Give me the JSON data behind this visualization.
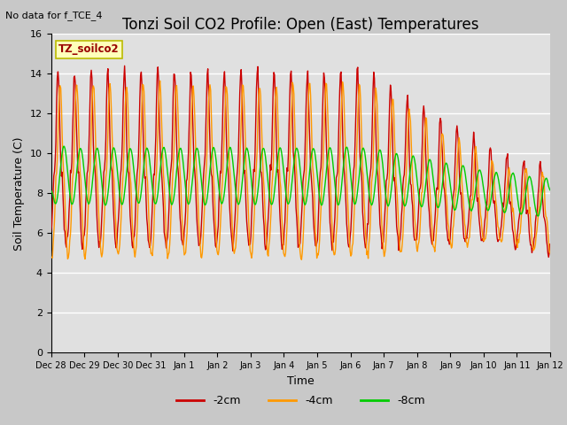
{
  "title": "Tonzi Soil CO2 Profile: Open (East) Temperatures",
  "subtitle": "No data for f_TCE_4",
  "ylabel": "Soil Temperature (C)",
  "xlabel": "Time",
  "legend_label": "TZ_soilco2",
  "ylim": [
    0,
    16
  ],
  "background_color": "#e0e0e0",
  "plot_bg_color": "#e0e0e0",
  "grid_color": "#ffffff",
  "series": {
    "2cm": {
      "color": "#cc0000",
      "label": "-2cm"
    },
    "4cm": {
      "color": "#ff9900",
      "label": "-4cm"
    },
    "8cm": {
      "color": "#00cc00",
      "label": "-8cm"
    }
  },
  "xtick_labels": [
    "Dec 28",
    "Dec 29",
    "Dec 30",
    "Dec 31",
    "Jan 1",
    "Jan 2",
    "Jan 3",
    "Jan 4",
    "Jan 5",
    "Jan 6",
    "Jan 7",
    "Jan 8",
    "Jan 9",
    "Jan 10",
    "Jan 11",
    "Jan 12"
  ],
  "title_fontsize": 12,
  "axis_fontsize": 9,
  "tick_fontsize": 8,
  "legend_fontsize": 9
}
